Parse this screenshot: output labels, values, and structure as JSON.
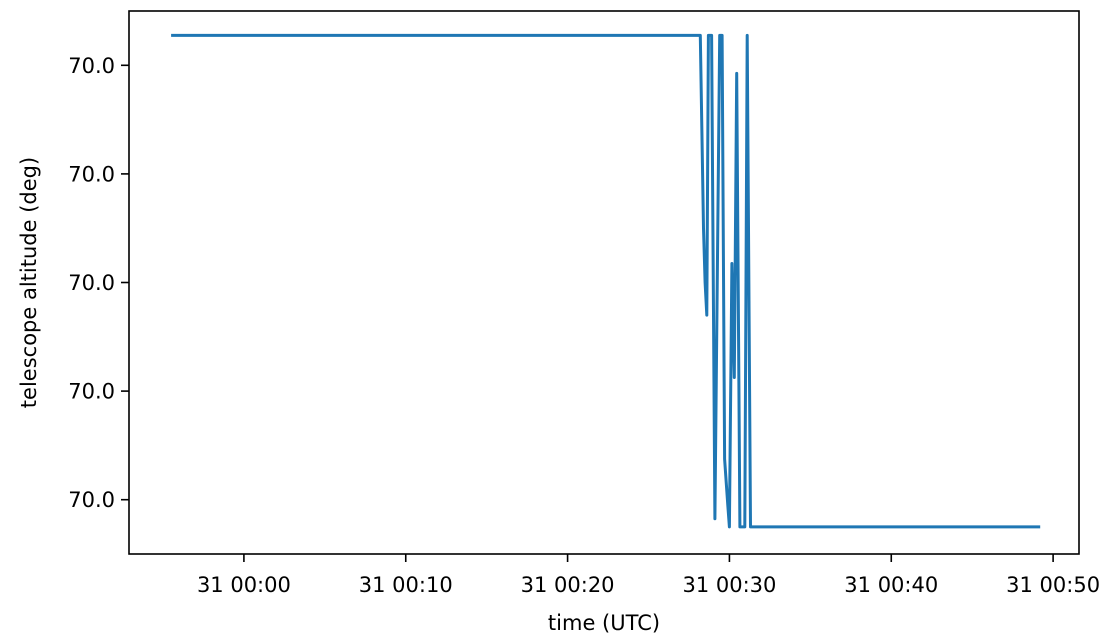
{
  "chart_data": {
    "type": "line",
    "title": "",
    "xlabel": "time (UTC)",
    "ylabel": "telescope altitude (deg)",
    "x_unit": "minutes",
    "xlim": [
      -7.1,
      51.6
    ],
    "ylim": [
      -1.0,
      1.0
    ],
    "grid": false,
    "legend": "none",
    "x_ticks": [
      {
        "value": 0,
        "label": "31 00:00"
      },
      {
        "value": 10,
        "label": "31 00:10"
      },
      {
        "value": 20,
        "label": "31 00:20"
      },
      {
        "value": 30,
        "label": "31 00:30"
      },
      {
        "value": 40,
        "label": "31 00:40"
      },
      {
        "value": 50,
        "label": "31 00:50"
      }
    ],
    "y_ticks": [
      {
        "value": 0.8,
        "label": "70.0"
      },
      {
        "value": 0.4,
        "label": "70.0"
      },
      {
        "value": 0.0,
        "label": "70.0"
      },
      {
        "value": -0.4,
        "label": "70.0"
      },
      {
        "value": -0.8,
        "label": "70.0"
      }
    ],
    "series": [
      {
        "name": "",
        "color": "#1f77b4",
        "points": [
          [
            -4.5,
            0.91
          ],
          [
            28.2,
            0.91
          ],
          [
            28.4,
            0.2
          ],
          [
            28.5,
            0.0
          ],
          [
            28.6,
            -0.12
          ],
          [
            28.7,
            0.91
          ],
          [
            28.9,
            0.91
          ],
          [
            29.1,
            -0.87
          ],
          [
            29.4,
            0.91
          ],
          [
            29.55,
            0.91
          ],
          [
            29.7,
            -0.65
          ],
          [
            29.9,
            -0.82
          ],
          [
            30.0,
            -0.9
          ],
          [
            30.15,
            0.07
          ],
          [
            30.3,
            -0.35
          ],
          [
            30.45,
            0.77
          ],
          [
            30.65,
            -0.9
          ],
          [
            30.95,
            -0.9
          ],
          [
            31.1,
            0.91
          ],
          [
            31.3,
            -0.9
          ],
          [
            49.2,
            -0.9
          ]
        ]
      }
    ]
  }
}
